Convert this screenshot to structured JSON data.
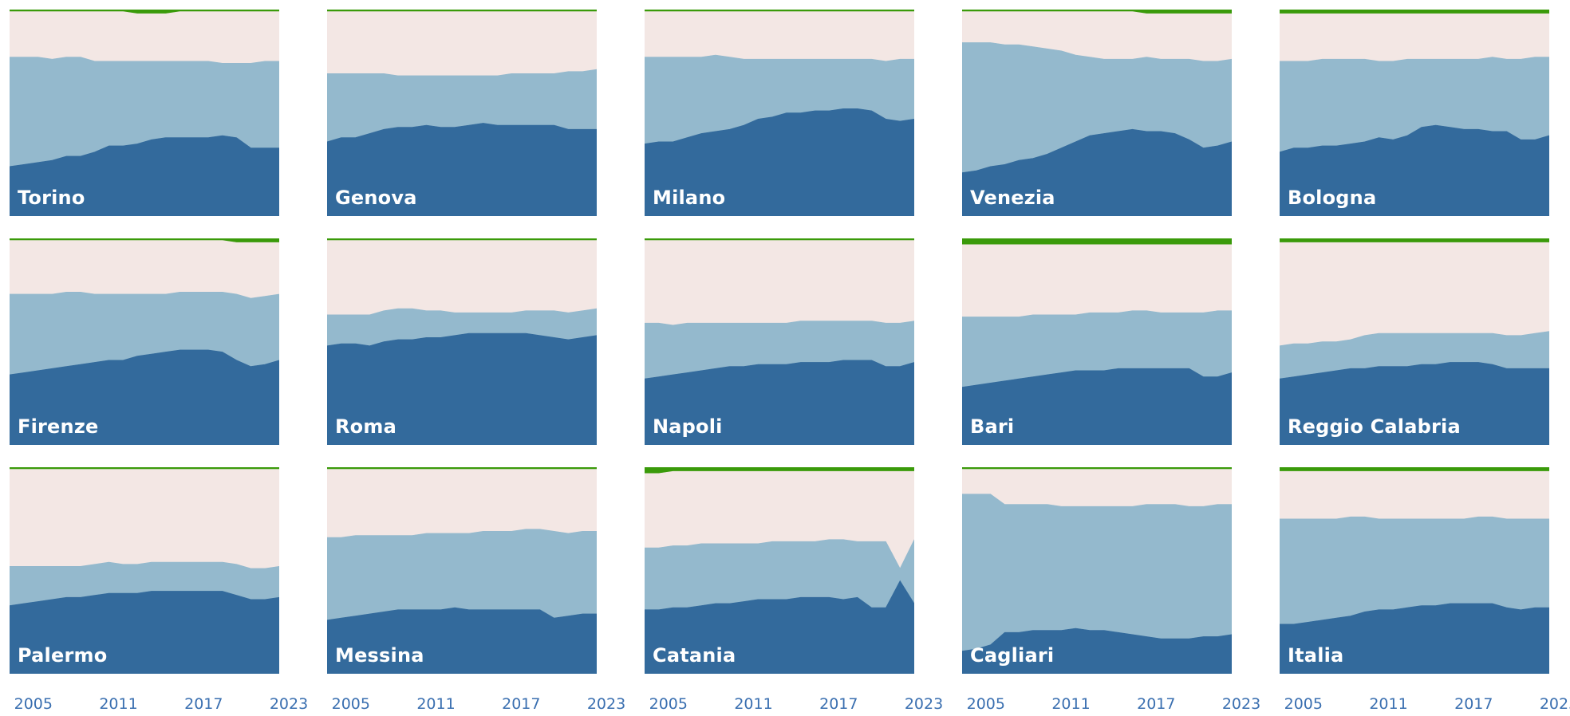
{
  "colors": {
    "background": "#ffffff",
    "top": "#f3e7e4",
    "middle": "#94b9cd",
    "bottom": "#336a9c",
    "strip": "#3a9a0a",
    "label": "#ffffff",
    "tick": "#3a6fb0"
  },
  "chart_data": {
    "type": "area",
    "stacked": "100%",
    "x": [
      2004,
      2005,
      2006,
      2007,
      2008,
      2009,
      2010,
      2011,
      2012,
      2013,
      2014,
      2015,
      2016,
      2017,
      2018,
      2019,
      2020,
      2021,
      2022,
      2023
    ],
    "x_ticks": [
      2005,
      2011,
      2017,
      2023
    ],
    "x_tick_labels": [
      "2005",
      "2011",
      "2017",
      "2023"
    ],
    "ylim": [
      0,
      100
    ],
    "panels": [
      {
        "name": "Torino",
        "bottom": [
          24,
          25,
          26,
          27,
          29,
          29,
          31,
          34,
          34,
          35,
          37,
          38,
          38,
          38,
          38,
          39,
          38,
          33,
          33,
          33
        ],
        "top_edge": [
          77,
          77,
          77,
          76,
          77,
          77,
          75,
          75,
          75,
          75,
          75,
          75,
          75,
          75,
          75,
          74,
          74,
          74,
          75,
          75
        ],
        "strip": [
          99,
          99,
          99,
          99,
          99,
          99,
          99,
          99,
          99,
          98,
          98,
          98,
          99,
          99,
          99,
          99,
          99,
          99,
          99,
          99
        ]
      },
      {
        "name": "Genova",
        "bottom": [
          36,
          38,
          38,
          40,
          42,
          43,
          43,
          44,
          43,
          43,
          44,
          45,
          44,
          44,
          44,
          44,
          44,
          42,
          42,
          42
        ],
        "top_edge": [
          69,
          69,
          69,
          69,
          69,
          68,
          68,
          68,
          68,
          68,
          68,
          68,
          68,
          69,
          69,
          69,
          69,
          70,
          70,
          71
        ],
        "strip": [
          99,
          99,
          99,
          99,
          99,
          99,
          99,
          99,
          99,
          99,
          99,
          99,
          99,
          99,
          99,
          99,
          99,
          99,
          99,
          99
        ]
      },
      {
        "name": "Milano",
        "bottom": [
          35,
          36,
          36,
          38,
          40,
          41,
          42,
          44,
          47,
          48,
          50,
          50,
          51,
          51,
          52,
          52,
          51,
          47,
          46,
          47
        ],
        "top_edge": [
          77,
          77,
          77,
          77,
          77,
          78,
          77,
          76,
          76,
          76,
          76,
          76,
          76,
          76,
          76,
          76,
          76,
          75,
          76,
          76
        ],
        "strip": [
          99,
          99,
          99,
          99,
          99,
          99,
          99,
          99,
          99,
          99,
          99,
          99,
          99,
          99,
          99,
          99,
          99,
          99,
          99,
          99
        ]
      },
      {
        "name": "Venezia",
        "bottom": [
          21,
          22,
          24,
          25,
          27,
          28,
          30,
          33,
          36,
          39,
          40,
          41,
          42,
          41,
          41,
          40,
          37,
          33,
          34,
          36
        ],
        "top_edge": [
          84,
          84,
          84,
          83,
          83,
          82,
          81,
          80,
          78,
          77,
          76,
          76,
          76,
          77,
          76,
          76,
          76,
          75,
          75,
          76
        ],
        "strip": [
          99,
          99,
          99,
          99,
          99,
          99,
          99,
          99,
          99,
          99,
          99,
          99,
          99,
          98,
          98,
          98,
          98,
          98,
          98,
          98
        ]
      },
      {
        "name": "Bologna",
        "bottom": [
          31,
          33,
          33,
          34,
          34,
          35,
          36,
          38,
          37,
          39,
          43,
          44,
          43,
          42,
          42,
          41,
          41,
          37,
          37,
          39
        ],
        "top_edge": [
          75,
          75,
          75,
          76,
          76,
          76,
          76,
          75,
          75,
          76,
          76,
          76,
          76,
          76,
          76,
          77,
          76,
          76,
          77,
          77
        ],
        "strip": [
          98,
          98,
          98,
          98,
          98,
          98,
          98,
          98,
          98,
          98,
          98,
          98,
          98,
          98,
          98,
          98,
          98,
          98,
          98,
          98
        ]
      },
      {
        "name": "Firenze",
        "bottom": [
          34,
          35,
          36,
          37,
          38,
          39,
          40,
          41,
          41,
          43,
          44,
          45,
          46,
          46,
          46,
          45,
          41,
          38,
          39,
          41
        ],
        "top_edge": [
          73,
          73,
          73,
          73,
          74,
          74,
          73,
          73,
          73,
          73,
          73,
          73,
          74,
          74,
          74,
          74,
          73,
          71,
          72,
          73
        ],
        "strip": [
          99,
          99,
          99,
          99,
          99,
          99,
          99,
          99,
          99,
          99,
          99,
          99,
          99,
          99,
          99,
          99,
          98,
          98,
          98,
          98
        ]
      },
      {
        "name": "Roma",
        "bottom": [
          48,
          49,
          49,
          48,
          50,
          51,
          51,
          52,
          52,
          53,
          54,
          54,
          54,
          54,
          54,
          53,
          52,
          51,
          52,
          53
        ],
        "top_edge": [
          63,
          63,
          63,
          63,
          65,
          66,
          66,
          65,
          65,
          64,
          64,
          64,
          64,
          64,
          65,
          65,
          65,
          64,
          65,
          66
        ],
        "strip": [
          99,
          99,
          99,
          99,
          99,
          99,
          99,
          99,
          99,
          99,
          99,
          99,
          99,
          99,
          99,
          99,
          99,
          99,
          99,
          99
        ]
      },
      {
        "name": "Napoli",
        "bottom": [
          32,
          33,
          34,
          35,
          36,
          37,
          38,
          38,
          39,
          39,
          39,
          40,
          40,
          40,
          41,
          41,
          41,
          38,
          38,
          40
        ],
        "top_edge": [
          59,
          59,
          58,
          59,
          59,
          59,
          59,
          59,
          59,
          59,
          59,
          60,
          60,
          60,
          60,
          60,
          60,
          59,
          59,
          60
        ],
        "strip": [
          99,
          99,
          99,
          99,
          99,
          99,
          99,
          99,
          99,
          99,
          99,
          99,
          99,
          99,
          99,
          99,
          99,
          99,
          99,
          99
        ]
      },
      {
        "name": "Bari",
        "bottom": [
          28,
          29,
          30,
          31,
          32,
          33,
          34,
          35,
          36,
          36,
          36,
          37,
          37,
          37,
          37,
          37,
          37,
          33,
          33,
          35
        ],
        "top_edge": [
          62,
          62,
          62,
          62,
          62,
          63,
          63,
          63,
          63,
          64,
          64,
          64,
          65,
          65,
          64,
          64,
          64,
          64,
          65,
          65
        ],
        "strip": [
          97,
          97,
          97,
          97,
          97,
          97,
          97,
          97,
          97,
          97,
          97,
          97,
          97,
          97,
          97,
          97,
          97,
          97,
          97,
          97
        ]
      },
      {
        "name": "Reggio Calabria",
        "bottom": [
          32,
          33,
          34,
          35,
          36,
          37,
          37,
          38,
          38,
          38,
          39,
          39,
          40,
          40,
          40,
          39,
          37,
          37,
          37,
          37
        ],
        "top_edge": [
          48,
          49,
          49,
          50,
          50,
          51,
          53,
          54,
          54,
          54,
          54,
          54,
          54,
          54,
          54,
          54,
          53,
          53,
          54,
          55
        ],
        "strip": [
          98,
          98,
          98,
          98,
          98,
          98,
          98,
          98,
          98,
          98,
          98,
          98,
          98,
          98,
          98,
          98,
          98,
          98,
          98,
          98
        ]
      },
      {
        "name": "Palermo",
        "bottom": [
          33,
          34,
          35,
          36,
          37,
          37,
          38,
          39,
          39,
          39,
          40,
          40,
          40,
          40,
          40,
          40,
          38,
          36,
          36,
          37
        ],
        "top_edge": [
          52,
          52,
          52,
          52,
          52,
          52,
          53,
          54,
          53,
          53,
          54,
          54,
          54,
          54,
          54,
          54,
          53,
          51,
          51,
          52
        ],
        "strip": [
          99,
          99,
          99,
          99,
          99,
          99,
          99,
          99,
          99,
          99,
          99,
          99,
          99,
          99,
          99,
          99,
          99,
          99,
          99,
          99
        ]
      },
      {
        "name": "Messina",
        "bottom": [
          26,
          27,
          28,
          29,
          30,
          31,
          31,
          31,
          31,
          32,
          31,
          31,
          31,
          31,
          31,
          31,
          27,
          28,
          29,
          29
        ],
        "top_edge": [
          66,
          66,
          67,
          67,
          67,
          67,
          67,
          68,
          68,
          68,
          68,
          69,
          69,
          69,
          70,
          70,
          69,
          68,
          69,
          69
        ],
        "strip": [
          99,
          99,
          99,
          99,
          99,
          99,
          99,
          99,
          99,
          99,
          99,
          99,
          99,
          99,
          99,
          99,
          99,
          99,
          99,
          99
        ]
      },
      {
        "name": "Catania",
        "bottom": [
          31,
          31,
          32,
          32,
          33,
          34,
          34,
          35,
          36,
          36,
          36,
          37,
          37,
          37,
          36,
          37,
          32,
          32,
          45,
          34
        ],
        "top_edge": [
          61,
          61,
          62,
          62,
          63,
          63,
          63,
          63,
          63,
          64,
          64,
          64,
          64,
          65,
          65,
          64,
          64,
          64,
          51,
          65
        ],
        "strip": [
          97,
          97,
          98,
          98,
          98,
          98,
          98,
          98,
          98,
          98,
          98,
          98,
          98,
          98,
          98,
          98,
          98,
          98,
          98,
          98
        ]
      },
      {
        "name": "Cagliari",
        "bottom": [
          11,
          12,
          14,
          20,
          20,
          21,
          21,
          21,
          22,
          21,
          21,
          20,
          19,
          18,
          17,
          17,
          17,
          18,
          18,
          19
        ],
        "top_edge": [
          87,
          87,
          87,
          82,
          82,
          82,
          82,
          81,
          81,
          81,
          81,
          81,
          81,
          82,
          82,
          82,
          81,
          81,
          82,
          82
        ],
        "strip": [
          99,
          99,
          99,
          99,
          99,
          99,
          99,
          99,
          99,
          99,
          99,
          99,
          99,
          99,
          99,
          99,
          99,
          99,
          99,
          99
        ]
      },
      {
        "name": "Italia",
        "bottom": [
          24,
          24,
          25,
          26,
          27,
          28,
          30,
          31,
          31,
          32,
          33,
          33,
          34,
          34,
          34,
          34,
          32,
          31,
          32,
          32
        ],
        "top_edge": [
          75,
          75,
          75,
          75,
          75,
          76,
          76,
          75,
          75,
          75,
          75,
          75,
          75,
          75,
          76,
          76,
          75,
          75,
          75,
          75
        ],
        "strip": [
          98,
          98,
          98,
          98,
          98,
          98,
          98,
          98,
          98,
          98,
          98,
          98,
          98,
          98,
          98,
          98,
          98,
          98,
          98,
          98
        ]
      }
    ]
  }
}
